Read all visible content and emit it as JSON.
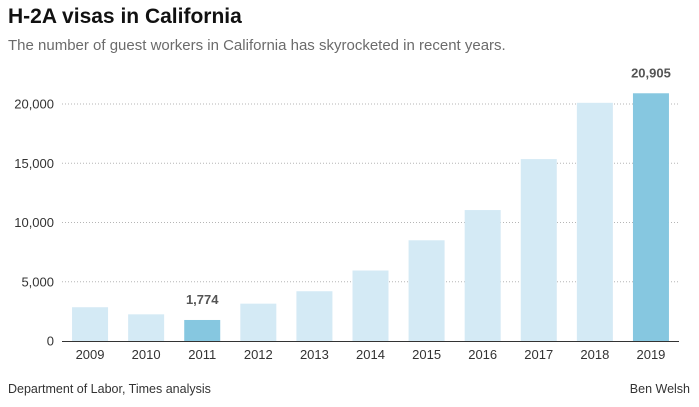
{
  "chart_data": {
    "type": "bar",
    "title": "H-2A visas in California",
    "subtitle": "The number of guest workers in California has skyrocketed in recent years.",
    "categories": [
      "2009",
      "2010",
      "2011",
      "2012",
      "2013",
      "2014",
      "2015",
      "2016",
      "2017",
      "2018",
      "2019"
    ],
    "values": [
      2850,
      2250,
      1774,
      3150,
      4200,
      5950,
      8500,
      11050,
      15350,
      20100,
      20905
    ],
    "highlighted": [
      "2011",
      "2019"
    ],
    "value_labels": {
      "2011": "1,774",
      "2019": "20,905"
    },
    "ylim": [
      0,
      22000
    ],
    "yticks": [
      0,
      5000,
      10000,
      15000,
      20000
    ],
    "ytick_labels": [
      "0",
      "5,000",
      "10,000",
      "15,000",
      "20,000"
    ],
    "grid": true,
    "colors": {
      "bar": "#d4eaf5",
      "highlight": "#86c7e0",
      "axis": "#333333",
      "grid": "#b5b5b5"
    }
  },
  "footer": {
    "source": "Department of Labor, Times analysis",
    "credit": "Ben Welsh"
  }
}
